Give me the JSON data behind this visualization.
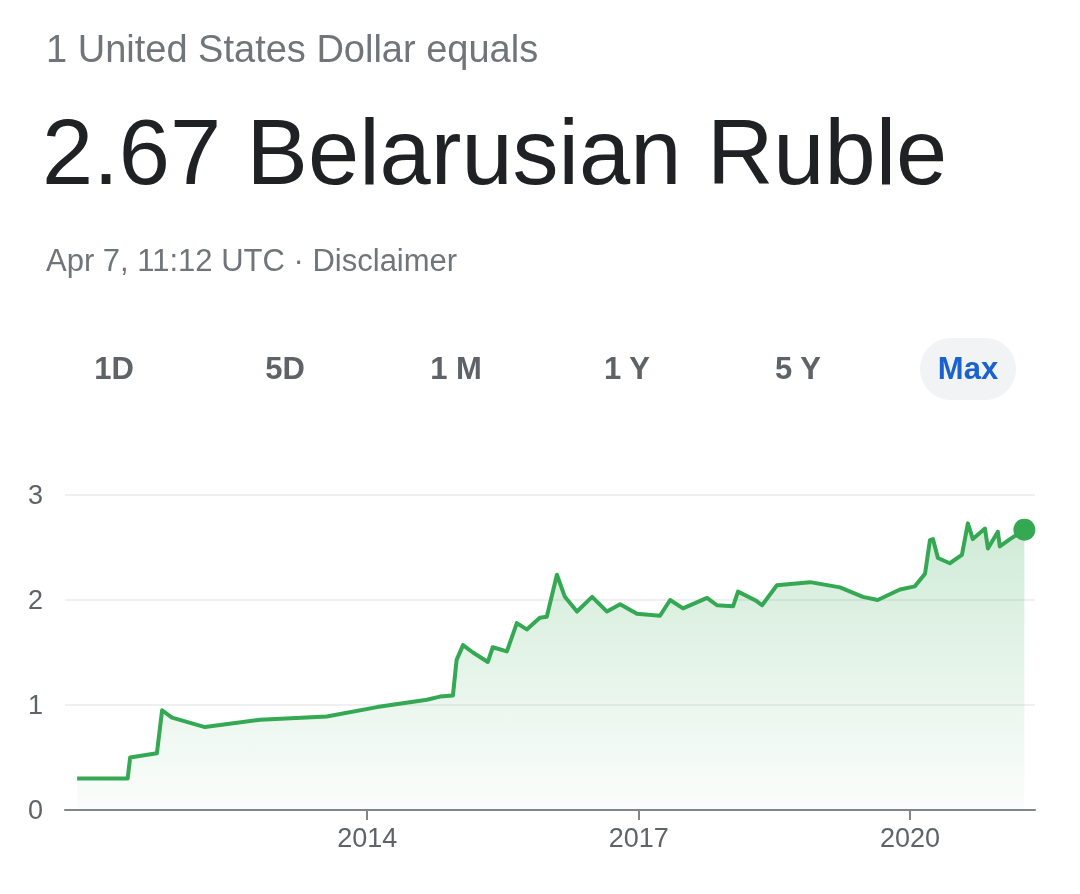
{
  "chart_data": {
    "type": "area",
    "subtitle": "1 United States Dollar equals",
    "title": "2.67 Belarusian Ruble",
    "annotations": [
      "Apr 7, 11:12 UTC · Disclaimer",
      "1D",
      "5D",
      "1 M",
      "1 Y",
      "5 Y",
      "Max"
    ],
    "x": [
      "2010-10-18",
      "2011-05-10",
      "2011-05-20",
      "2011-09-05",
      "2011-09-26",
      "2011-11-05",
      "2012-03-17",
      "2012-10-26",
      "2013-07-22",
      "2014-02-10",
      "2014-08-30",
      "2014-10-22",
      "2014-12-13",
      "2014-12-28",
      "2015-01-23",
      "2015-03-04",
      "2015-05-03",
      "2015-05-23",
      "2015-07-19",
      "2015-08-28",
      "2015-10-07",
      "2015-11-29",
      "2015-12-27",
      "2016-02-06",
      "2016-03-09",
      "2016-04-27",
      "2016-06-27",
      "2016-08-26",
      "2016-10-18",
      "2016-12-25",
      "2017-03-28",
      "2017-05-08",
      "2017-06-29",
      "2017-10-04",
      "2017-11-13",
      "2018-01-17",
      "2018-02-06",
      "2018-04-22",
      "2018-05-14",
      "2018-07-13",
      "2018-11-24",
      "2019-03-25",
      "2019-06-25",
      "2019-08-24",
      "2019-11-22",
      "2020-01-21",
      "2020-03-02",
      "2020-03-22",
      "2020-04-03",
      "2020-04-23",
      "2020-06-10",
      "2020-07-29",
      "2020-08-22",
      "2020-09-11",
      "2020-10-30",
      "2020-11-11",
      "2020-12-21",
      "2020-12-29",
      "2021-02-08",
      "2021-04-07"
    ],
    "series": [
      {
        "color": "#34a853",
        "values": [
          0.3,
          0.3,
          0.5,
          0.54,
          0.95,
          0.88,
          0.79,
          0.86,
          0.89,
          0.98,
          1.05,
          1.08,
          1.09,
          1.43,
          1.57,
          1.5,
          1.41,
          1.55,
          1.51,
          1.78,
          1.72,
          1.83,
          1.84,
          2.24,
          2.03,
          1.89,
          2.03,
          1.89,
          1.96,
          1.87,
          1.85,
          2.0,
          1.92,
          2.02,
          1.95,
          1.94,
          2.08,
          1.99,
          1.95,
          2.14,
          2.17,
          2.12,
          2.03,
          2.0,
          2.1,
          2.13,
          2.25,
          2.57,
          2.58,
          2.4,
          2.35,
          2.43,
          2.73,
          2.58,
          2.68,
          2.49,
          2.65,
          2.51,
          2.58,
          2.67
        ]
      }
    ],
    "xlim": [
      "2010-08-30",
      "2021-05-20"
    ],
    "xticks": [
      {
        "value": "2014",
        "label": "2014"
      },
      {
        "value": "2017",
        "label": "2017"
      },
      {
        "value": "2020",
        "label": "2020"
      }
    ],
    "ylim": [
      0,
      3
    ],
    "yticks": [
      0,
      1,
      2,
      3
    ],
    "grid": "y"
  }
}
